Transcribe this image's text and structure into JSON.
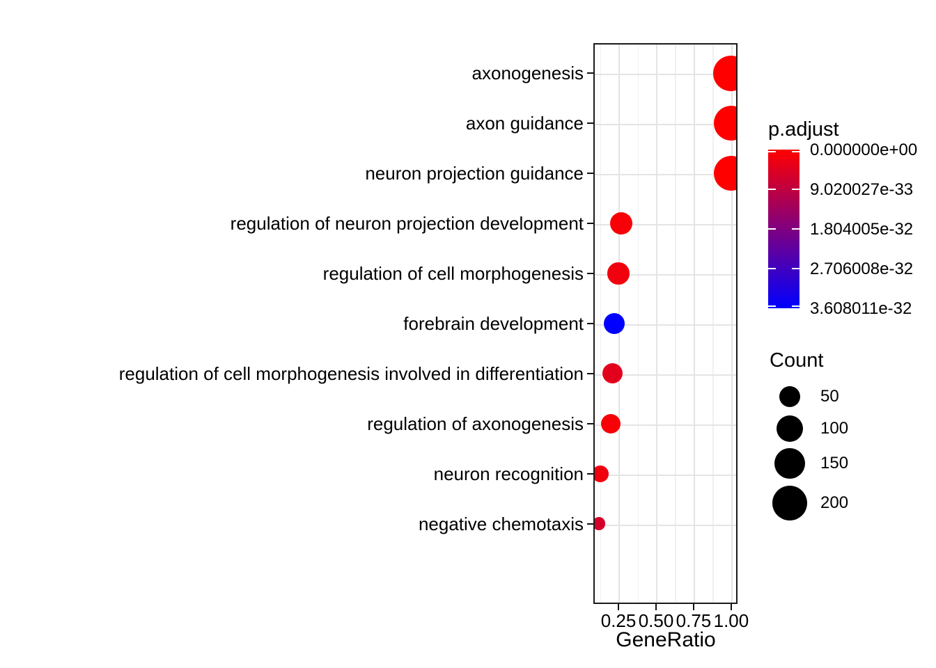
{
  "chart_data": {
    "type": "scatter",
    "subtype": "enrichment-dotplot",
    "title": "",
    "xlabel": "GeneRatio",
    "ylabel": "",
    "grid": true,
    "legend_position": "right",
    "xlim": [
      0.083,
      1.042
    ],
    "x_tick_values": [
      0.25,
      0.5,
      0.75,
      1.0
    ],
    "x_tick_labels": [
      "0.25",
      "0.50",
      "0.75",
      "1.00"
    ],
    "x_minor_tick_values": [
      0.125,
      0.375,
      0.625,
      0.875
    ],
    "categories": [
      "axonogenesis",
      "axon guidance",
      "neuron projection guidance",
      "regulation of neuron projection development",
      "regulation of cell morphogenesis",
      "forebrain development",
      "regulation of cell morphogenesis involved in differentiation",
      "regulation of axonogenesis",
      "neuron recognition",
      "negative chemotaxis"
    ],
    "points": [
      {
        "category": "axonogenesis",
        "gene_ratio": 1.0,
        "count": 210,
        "p_adjust": 0
      },
      {
        "category": "axon guidance",
        "gene_ratio": 1.0,
        "count": 205,
        "p_adjust": 0
      },
      {
        "category": "neuron projection guidance",
        "gene_ratio": 1.0,
        "count": 200,
        "p_adjust": 0
      },
      {
        "category": "regulation of neuron projection development",
        "gene_ratio": 0.27,
        "count": 62,
        "p_adjust": 1e-33
      },
      {
        "category": "regulation of cell morphogenesis",
        "gene_ratio": 0.25,
        "count": 56,
        "p_adjust": 2e-33
      },
      {
        "category": "forebrain development",
        "gene_ratio": 0.22,
        "count": 50,
        "p_adjust": 3.608011e-32
      },
      {
        "category": "regulation of cell morphogenesis involved in differentiation",
        "gene_ratio": 0.21,
        "count": 45,
        "p_adjust": 4e-33
      },
      {
        "category": "regulation of axonogenesis",
        "gene_ratio": 0.2,
        "count": 42,
        "p_adjust": 1e-33
      },
      {
        "category": "neuron recognition",
        "gene_ratio": 0.13,
        "count": 25,
        "p_adjust": 2e-33
      },
      {
        "category": "negative chemotaxis",
        "gene_ratio": 0.12,
        "count": 10,
        "p_adjust": 6e-33
      }
    ],
    "color_legend": {
      "title": "p.adjust",
      "gradient_top_color": "#FF0000",
      "gradient_bottom_color": "#0000FF",
      "domain": [
        0,
        3.608011e-32
      ],
      "tick_labels": [
        "0.000000e+00",
        "9.020027e-33",
        "1.804005e-32",
        "2.706008e-32",
        "3.608011e-32"
      ]
    },
    "size_legend": {
      "title": "Count",
      "values": [
        50,
        100,
        150,
        200
      ],
      "labels": [
        "50",
        "100",
        "150",
        "200"
      ]
    }
  },
  "colors": {
    "background": "#FFFFFF",
    "text": "#000000",
    "panel_border": "#1A1A1A",
    "grid_major": "#E4E4E4",
    "grid_minor": "#F0F0F0",
    "axis_tick": "#111111",
    "size_legend_dot": "#000000"
  }
}
